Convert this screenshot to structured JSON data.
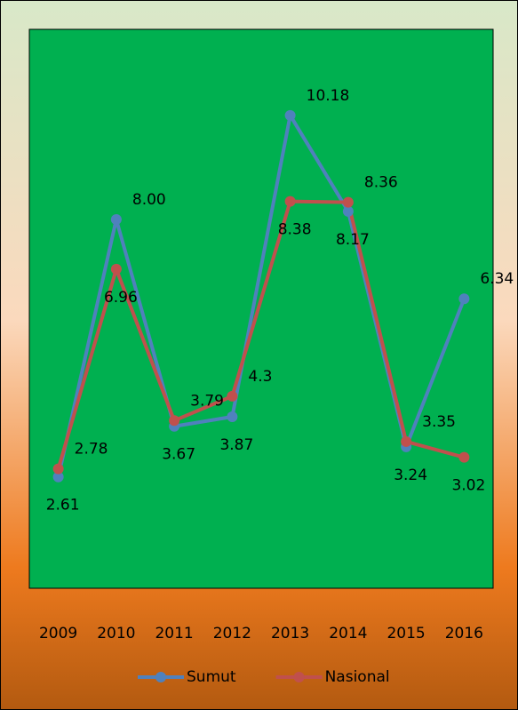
{
  "chart_data": {
    "type": "line",
    "categories": [
      "2009",
      "2010",
      "2011",
      "2012",
      "2013",
      "2014",
      "2015",
      "2016"
    ],
    "series": [
      {
        "name": "Sumut",
        "color": "#4f81bd",
        "values": [
          2.61,
          8.0,
          3.67,
          3.87,
          10.18,
          8.17,
          3.24,
          6.34
        ],
        "value_labels": [
          "2.61",
          "8.00",
          "3.67",
          "3.87",
          "10.18",
          "8.17",
          "3.24",
          "6.34"
        ]
      },
      {
        "name": "Nasional",
        "color": "#c0504d",
        "values": [
          2.78,
          6.96,
          3.79,
          4.3,
          8.38,
          8.36,
          3.35,
          3.02
        ],
        "value_labels": [
          "2.78",
          "6.96",
          "3.79",
          "4.3",
          "8.38",
          "8.36",
          "3.35",
          "3.02"
        ]
      }
    ],
    "ylim": [
      0,
      12
    ],
    "legend": "bottom",
    "plot_color": "#00b050"
  }
}
